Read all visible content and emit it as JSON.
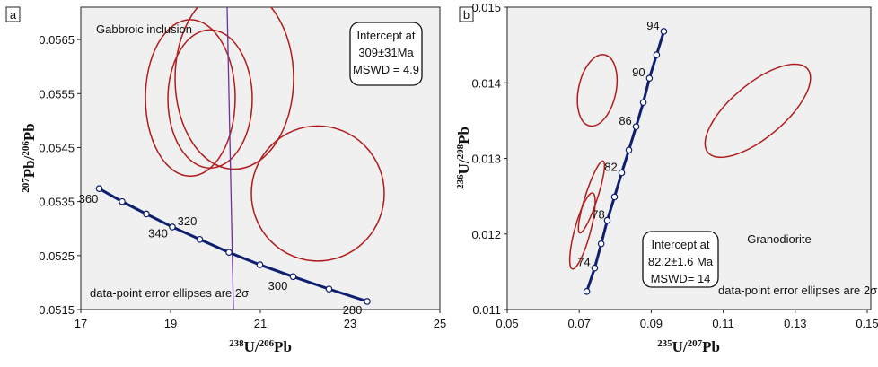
{
  "chart_data": [
    {
      "type": "scatter",
      "panel": "a",
      "annotation": "Gabbroic inclusion",
      "intercept_box": [
        "Intercept at",
        "309±31Ma",
        "MSWD = 4.9"
      ],
      "note": "data-point error ellipses are 2σ",
      "xlabel": [
        {
          "text": "238",
          "sup": true
        },
        {
          "text": "U/",
          "sup": false
        },
        {
          "text": "206",
          "sup": true
        },
        {
          "text": "Pb",
          "sup": false
        }
      ],
      "ylabel": [
        {
          "text": "207",
          "sup": true
        },
        {
          "text": "Pb/",
          "sup": false
        },
        {
          "text": "206",
          "sup": true
        },
        {
          "text": "Pb",
          "sup": false
        }
      ],
      "xlim": [
        17,
        25
      ],
      "xticks": [
        17,
        19,
        21,
        23,
        25
      ],
      "ylim": [
        0.0515,
        0.0571
      ],
      "yticks": [
        0.0515,
        0.0525,
        0.0535,
        0.0545,
        0.0555,
        0.0565
      ],
      "ellipses": {
        "color": "#b01c1c",
        "cx": [
          19.44,
          19.88,
          20.42,
          22.28
        ],
        "cy": [
          0.05542,
          0.0554,
          0.05578,
          0.05365
        ],
        "rx": [
          1.0,
          0.94,
          1.32,
          1.48
        ],
        "ry": [
          0.00145,
          0.00128,
          0.00168,
          0.00125
        ],
        "tilt": [
          0,
          0,
          0,
          0
        ]
      },
      "concordia": {
        "color": "#0d1f6e",
        "x": [
          17.41,
          17.92,
          18.46,
          19.04,
          19.65,
          20.3,
          20.99,
          21.73,
          22.53,
          23.38
        ],
        "y": [
          0.05374,
          0.0535,
          0.05327,
          0.05303,
          0.0528,
          0.05256,
          0.05233,
          0.05211,
          0.05188,
          0.05165
        ],
        "labels": [
          "360",
          null,
          "340",
          null,
          "320",
          null,
          "300",
          null,
          "280",
          null
        ]
      },
      "discordia": {
        "color": "#7030a0",
        "x": [
          20.26,
          20.4
        ],
        "y": [
          0.0571,
          0.0515
        ]
      }
    },
    {
      "type": "scatter",
      "panel": "b",
      "annotation": "Granodiorite",
      "intercept_box": [
        "Intercept at",
        "82.2±1.6 Ma",
        "MSWD= 14"
      ],
      "note": "data-point error ellipses are 2σ",
      "xlabel": [
        {
          "text": "235",
          "sup": true
        },
        {
          "text": "U/",
          "sup": false
        },
        {
          "text": "207",
          "sup": true
        },
        {
          "text": "Pb",
          "sup": false
        }
      ],
      "ylabel": [
        {
          "text": "236",
          "sup": true
        },
        {
          "text": "U/",
          "sup": false
        },
        {
          "text": "208",
          "sup": true
        },
        {
          "text": "Pb",
          "sup": false
        }
      ],
      "xlim": [
        0.05,
        0.151
      ],
      "xticks": [
        0.05,
        0.07,
        0.09,
        0.11,
        0.13,
        0.15
      ],
      "ylim": [
        0.011,
        0.015
      ],
      "yticks": [
        0.011,
        0.012,
        0.013,
        0.014,
        0.015
      ],
      "ellipses": {
        "color": "#b01c1c",
        "cx": [
          0.075,
          0.0734,
          0.0709,
          0.1196
        ],
        "cy": [
          0.0139,
          0.01249,
          0.01204,
          0.01363
        ],
        "rx": [
          0.0052,
          0.0017,
          0.0022,
          0.00745
        ],
        "ry": [
          0.00048,
          0.0005,
          0.00052,
          0.00086
        ],
        "tilt": [
          12,
          18,
          15,
          50
        ]
      },
      "concordia": {
        "color": "#0d1f6e",
        "x": [
          0.0935,
          0.0915,
          0.0895,
          0.0878,
          0.0858,
          0.0838,
          0.0818,
          0.0798,
          0.0778,
          0.0761,
          0.0743,
          0.0721
        ],
        "y": [
          0.01468,
          0.01437,
          0.01406,
          0.01374,
          0.01342,
          0.01311,
          0.01281,
          0.01249,
          0.01218,
          0.01187,
          0.01155,
          0.01124
        ],
        "labels": [
          "94",
          null,
          "90",
          null,
          "86",
          null,
          "82",
          null,
          "78",
          null,
          "74",
          null
        ]
      }
    }
  ]
}
